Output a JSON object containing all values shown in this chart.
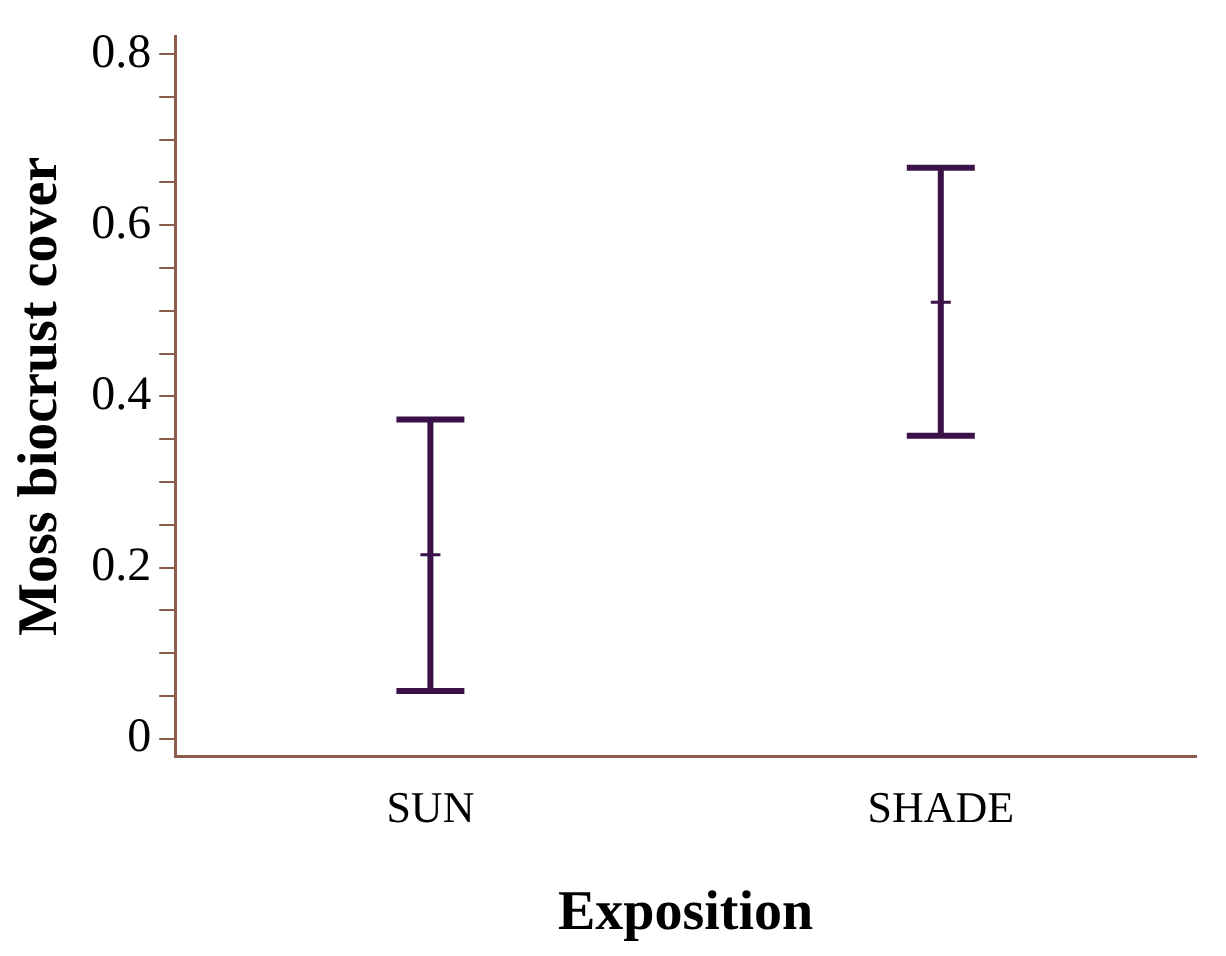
{
  "chart_data": {
    "type": "scatter",
    "xlabel": "Exposition",
    "ylabel": "Moss biocrust cover",
    "categories": [
      "SUN",
      "SHADE"
    ],
    "values": [
      0.215,
      0.51
    ],
    "errors": [
      [
        0.056,
        0.373
      ],
      [
        0.354,
        0.667
      ]
    ],
    "color": "#3b1247",
    "marker": "cross",
    "ylim": [
      -0.02,
      0.82
    ],
    "yticks": [
      0,
      {
        "value": 0.05,
        "label": null
      },
      {
        "value": 0.1,
        "label": null
      },
      {
        "value": 0.15,
        "label": null
      },
      0.2,
      {
        "value": 0.25,
        "label": null
      },
      {
        "value": 0.3,
        "label": null
      },
      {
        "value": 0.35,
        "label": null
      },
      0.4,
      {
        "value": 0.45,
        "label": null
      },
      {
        "value": 0.5,
        "label": null
      },
      {
        "value": 0.55,
        "label": null
      },
      0.6,
      {
        "value": 0.65,
        "label": null
      },
      {
        "value": 0.7,
        "label": null
      },
      {
        "value": 0.75,
        "label": null
      },
      0.8
    ],
    "grid": false,
    "legend": false
  }
}
